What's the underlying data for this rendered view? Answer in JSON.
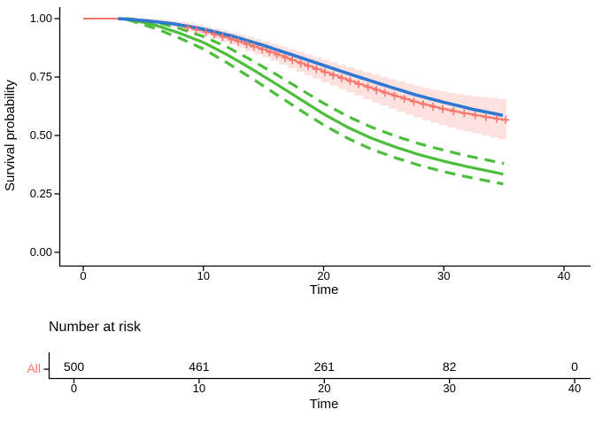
{
  "chart_data": {
    "type": "line",
    "title": "",
    "xlabel": "Time",
    "ylabel": "Survival probability",
    "xlim": [
      0,
      42
    ],
    "ylim": [
      0,
      1.0
    ],
    "xticks": [
      0,
      10,
      20,
      30,
      40
    ],
    "ytick_labels": [
      "0.00",
      "0.25",
      "0.50",
      "0.75",
      "1.00"
    ],
    "ytick_values": [
      0,
      0.25,
      0.5,
      0.75,
      1.0
    ],
    "grid": false,
    "legend": "none",
    "colors": {
      "km": "#F8766D",
      "km_band": "#F8766D",
      "smooth_fit": "#2E78D2",
      "parametric_fit": "#4CBE3C",
      "axis": "#000000"
    },
    "series": [
      {
        "name": "kaplan-meier-estimate",
        "style": "step",
        "color": "#F8766D",
        "width": 2,
        "points": [
          [
            0,
            1
          ],
          [
            3,
            1
          ],
          [
            4,
            0.998
          ],
          [
            5,
            0.993
          ],
          [
            6,
            0.987
          ],
          [
            7,
            0.979
          ],
          [
            8,
            0.969
          ],
          [
            9,
            0.958
          ],
          [
            10,
            0.945
          ],
          [
            11,
            0.931
          ],
          [
            12,
            0.916
          ],
          [
            13,
            0.9
          ],
          [
            14,
            0.883
          ],
          [
            15,
            0.866
          ],
          [
            16,
            0.848
          ],
          [
            17,
            0.829
          ],
          [
            18,
            0.81
          ],
          [
            19,
            0.791
          ],
          [
            20,
            0.772
          ],
          [
            21,
            0.754
          ],
          [
            22,
            0.736
          ],
          [
            23,
            0.718
          ],
          [
            24,
            0.701
          ],
          [
            25,
            0.684
          ],
          [
            26,
            0.668
          ],
          [
            27,
            0.652
          ],
          [
            28,
            0.637
          ],
          [
            29,
            0.624
          ],
          [
            30,
            0.612
          ],
          [
            31,
            0.601
          ],
          [
            32,
            0.592
          ],
          [
            33,
            0.583
          ],
          [
            34,
            0.574
          ],
          [
            35,
            0.566
          ]
        ]
      },
      {
        "name": "km-confidence-band-halfwidth",
        "style": "band",
        "color": "#F8766D",
        "opacity": 0.22,
        "points": [
          [
            3,
            0.004
          ],
          [
            5,
            0.008
          ],
          [
            7,
            0.013
          ],
          [
            10,
            0.02
          ],
          [
            13,
            0.029
          ],
          [
            16,
            0.038
          ],
          [
            19,
            0.046
          ],
          [
            22,
            0.054
          ],
          [
            25,
            0.062
          ],
          [
            28,
            0.069
          ],
          [
            31,
            0.076
          ],
          [
            33,
            0.081
          ],
          [
            35,
            0.088
          ]
        ]
      },
      {
        "name": "smooth-fit",
        "style": "line",
        "color": "#2E78D2",
        "width": 3.6,
        "points": [
          [
            2.9,
            1.0
          ],
          [
            5,
            0.992
          ],
          [
            7.5,
            0.978
          ],
          [
            10,
            0.955
          ],
          [
            12.5,
            0.924
          ],
          [
            15,
            0.885
          ],
          [
            17.5,
            0.843
          ],
          [
            20,
            0.8
          ],
          [
            22.5,
            0.757
          ],
          [
            25,
            0.716
          ],
          [
            27.5,
            0.676
          ],
          [
            30,
            0.642
          ],
          [
            32.5,
            0.611
          ],
          [
            35,
            0.585
          ]
        ]
      },
      {
        "name": "parametric-estimate",
        "style": "line",
        "color": "#4CBE3C",
        "width": 3.2,
        "points": [
          [
            3.2,
            1.0
          ],
          [
            4,
            0.995
          ],
          [
            6,
            0.972
          ],
          [
            8,
            0.938
          ],
          [
            10,
            0.898
          ],
          [
            12,
            0.845
          ],
          [
            14,
            0.785
          ],
          [
            16,
            0.722
          ],
          [
            18,
            0.657
          ],
          [
            20,
            0.592
          ],
          [
            22,
            0.535
          ],
          [
            24,
            0.488
          ],
          [
            26,
            0.45
          ],
          [
            28,
            0.417
          ],
          [
            30,
            0.39
          ],
          [
            32,
            0.366
          ],
          [
            34,
            0.345
          ],
          [
            35,
            0.334
          ]
        ]
      },
      {
        "name": "parametric-upper-ci",
        "style": "dashed",
        "color": "#4CBE3C",
        "width": 3.2,
        "dash": "12 8",
        "points": [
          [
            3.5,
            1.0
          ],
          [
            4,
            0.999
          ],
          [
            6,
            0.985
          ],
          [
            8,
            0.958
          ],
          [
            10,
            0.923
          ],
          [
            12,
            0.878
          ],
          [
            14,
            0.822
          ],
          [
            16,
            0.763
          ],
          [
            18,
            0.7
          ],
          [
            20,
            0.638
          ],
          [
            22,
            0.582
          ],
          [
            24,
            0.535
          ],
          [
            26,
            0.497
          ],
          [
            28,
            0.464
          ],
          [
            30,
            0.437
          ],
          [
            32,
            0.412
          ],
          [
            34,
            0.391
          ],
          [
            35,
            0.38
          ]
        ]
      },
      {
        "name": "parametric-lower-ci",
        "style": "dashed",
        "color": "#4CBE3C",
        "width": 3.2,
        "dash": "12 8",
        "points": [
          [
            3.7,
            0.995
          ],
          [
            4,
            0.99
          ],
          [
            6,
            0.958
          ],
          [
            8,
            0.917
          ],
          [
            10,
            0.87
          ],
          [
            12,
            0.81
          ],
          [
            14,
            0.745
          ],
          [
            16,
            0.678
          ],
          [
            18,
            0.61
          ],
          [
            20,
            0.545
          ],
          [
            22,
            0.488
          ],
          [
            24,
            0.441
          ],
          [
            26,
            0.404
          ],
          [
            28,
            0.372
          ],
          [
            30,
            0.345
          ],
          [
            32,
            0.322
          ],
          [
            34,
            0.302
          ],
          [
            35,
            0.292
          ]
        ]
      }
    ],
    "censor_times": [
      8.7,
      9.4,
      10.2,
      10.9,
      11.6,
      12.3,
      12.9,
      13.6,
      14.2,
      14.9,
      15.5,
      16.1,
      16.8,
      17.4,
      18.1,
      18.7,
      19.4,
      20.1,
      20.8,
      21.5,
      22.2,
      22.9,
      23.7,
      24.4,
      25.1,
      25.9,
      26.7,
      27.5,
      28.3,
      29.1,
      29.9,
      30.8,
      31.7,
      32.6,
      33.5,
      34.4,
      35.15
    ],
    "risk_table": {
      "title": "Number at risk",
      "xlabel": "Time",
      "times": [
        0,
        10,
        20,
        30,
        40
      ],
      "rows": [
        {
          "label": "All",
          "color": "#F8766D",
          "values": [
            "500",
            "461",
            "261",
            "82",
            "0"
          ]
        }
      ]
    }
  }
}
